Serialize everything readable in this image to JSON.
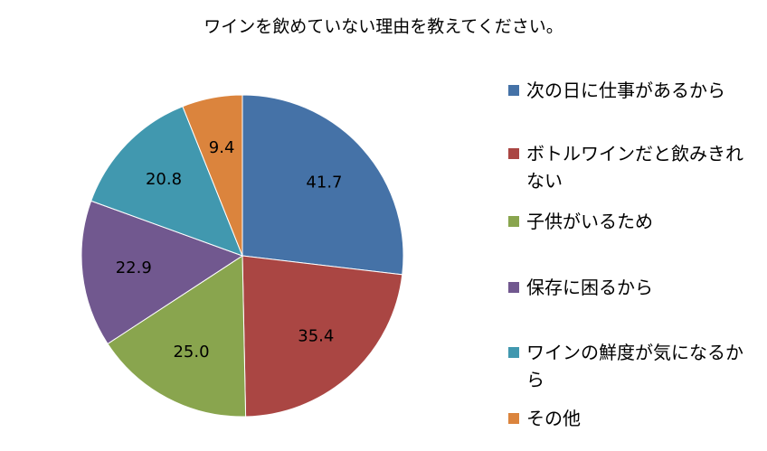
{
  "chart_data": {
    "type": "pie",
    "title": "ワインを飲めていない理由を教えてください。",
    "categories": [
      "次の日に仕事があるから",
      "ボトルワインだと飲みきれない",
      "子供がいるため",
      "保存に困るから",
      "ワインの鮮度が気になるから",
      "その他"
    ],
    "values": [
      41.7,
      35.4,
      25.0,
      22.9,
      20.8,
      9.4
    ],
    "value_labels": [
      "41.7",
      "35.4",
      "25.0",
      "22.9",
      "20.8",
      "9.4"
    ],
    "colors": [
      "#4572a7",
      "#aa4643",
      "#89a54e",
      "#71588f",
      "#4198af",
      "#db843d"
    ]
  }
}
